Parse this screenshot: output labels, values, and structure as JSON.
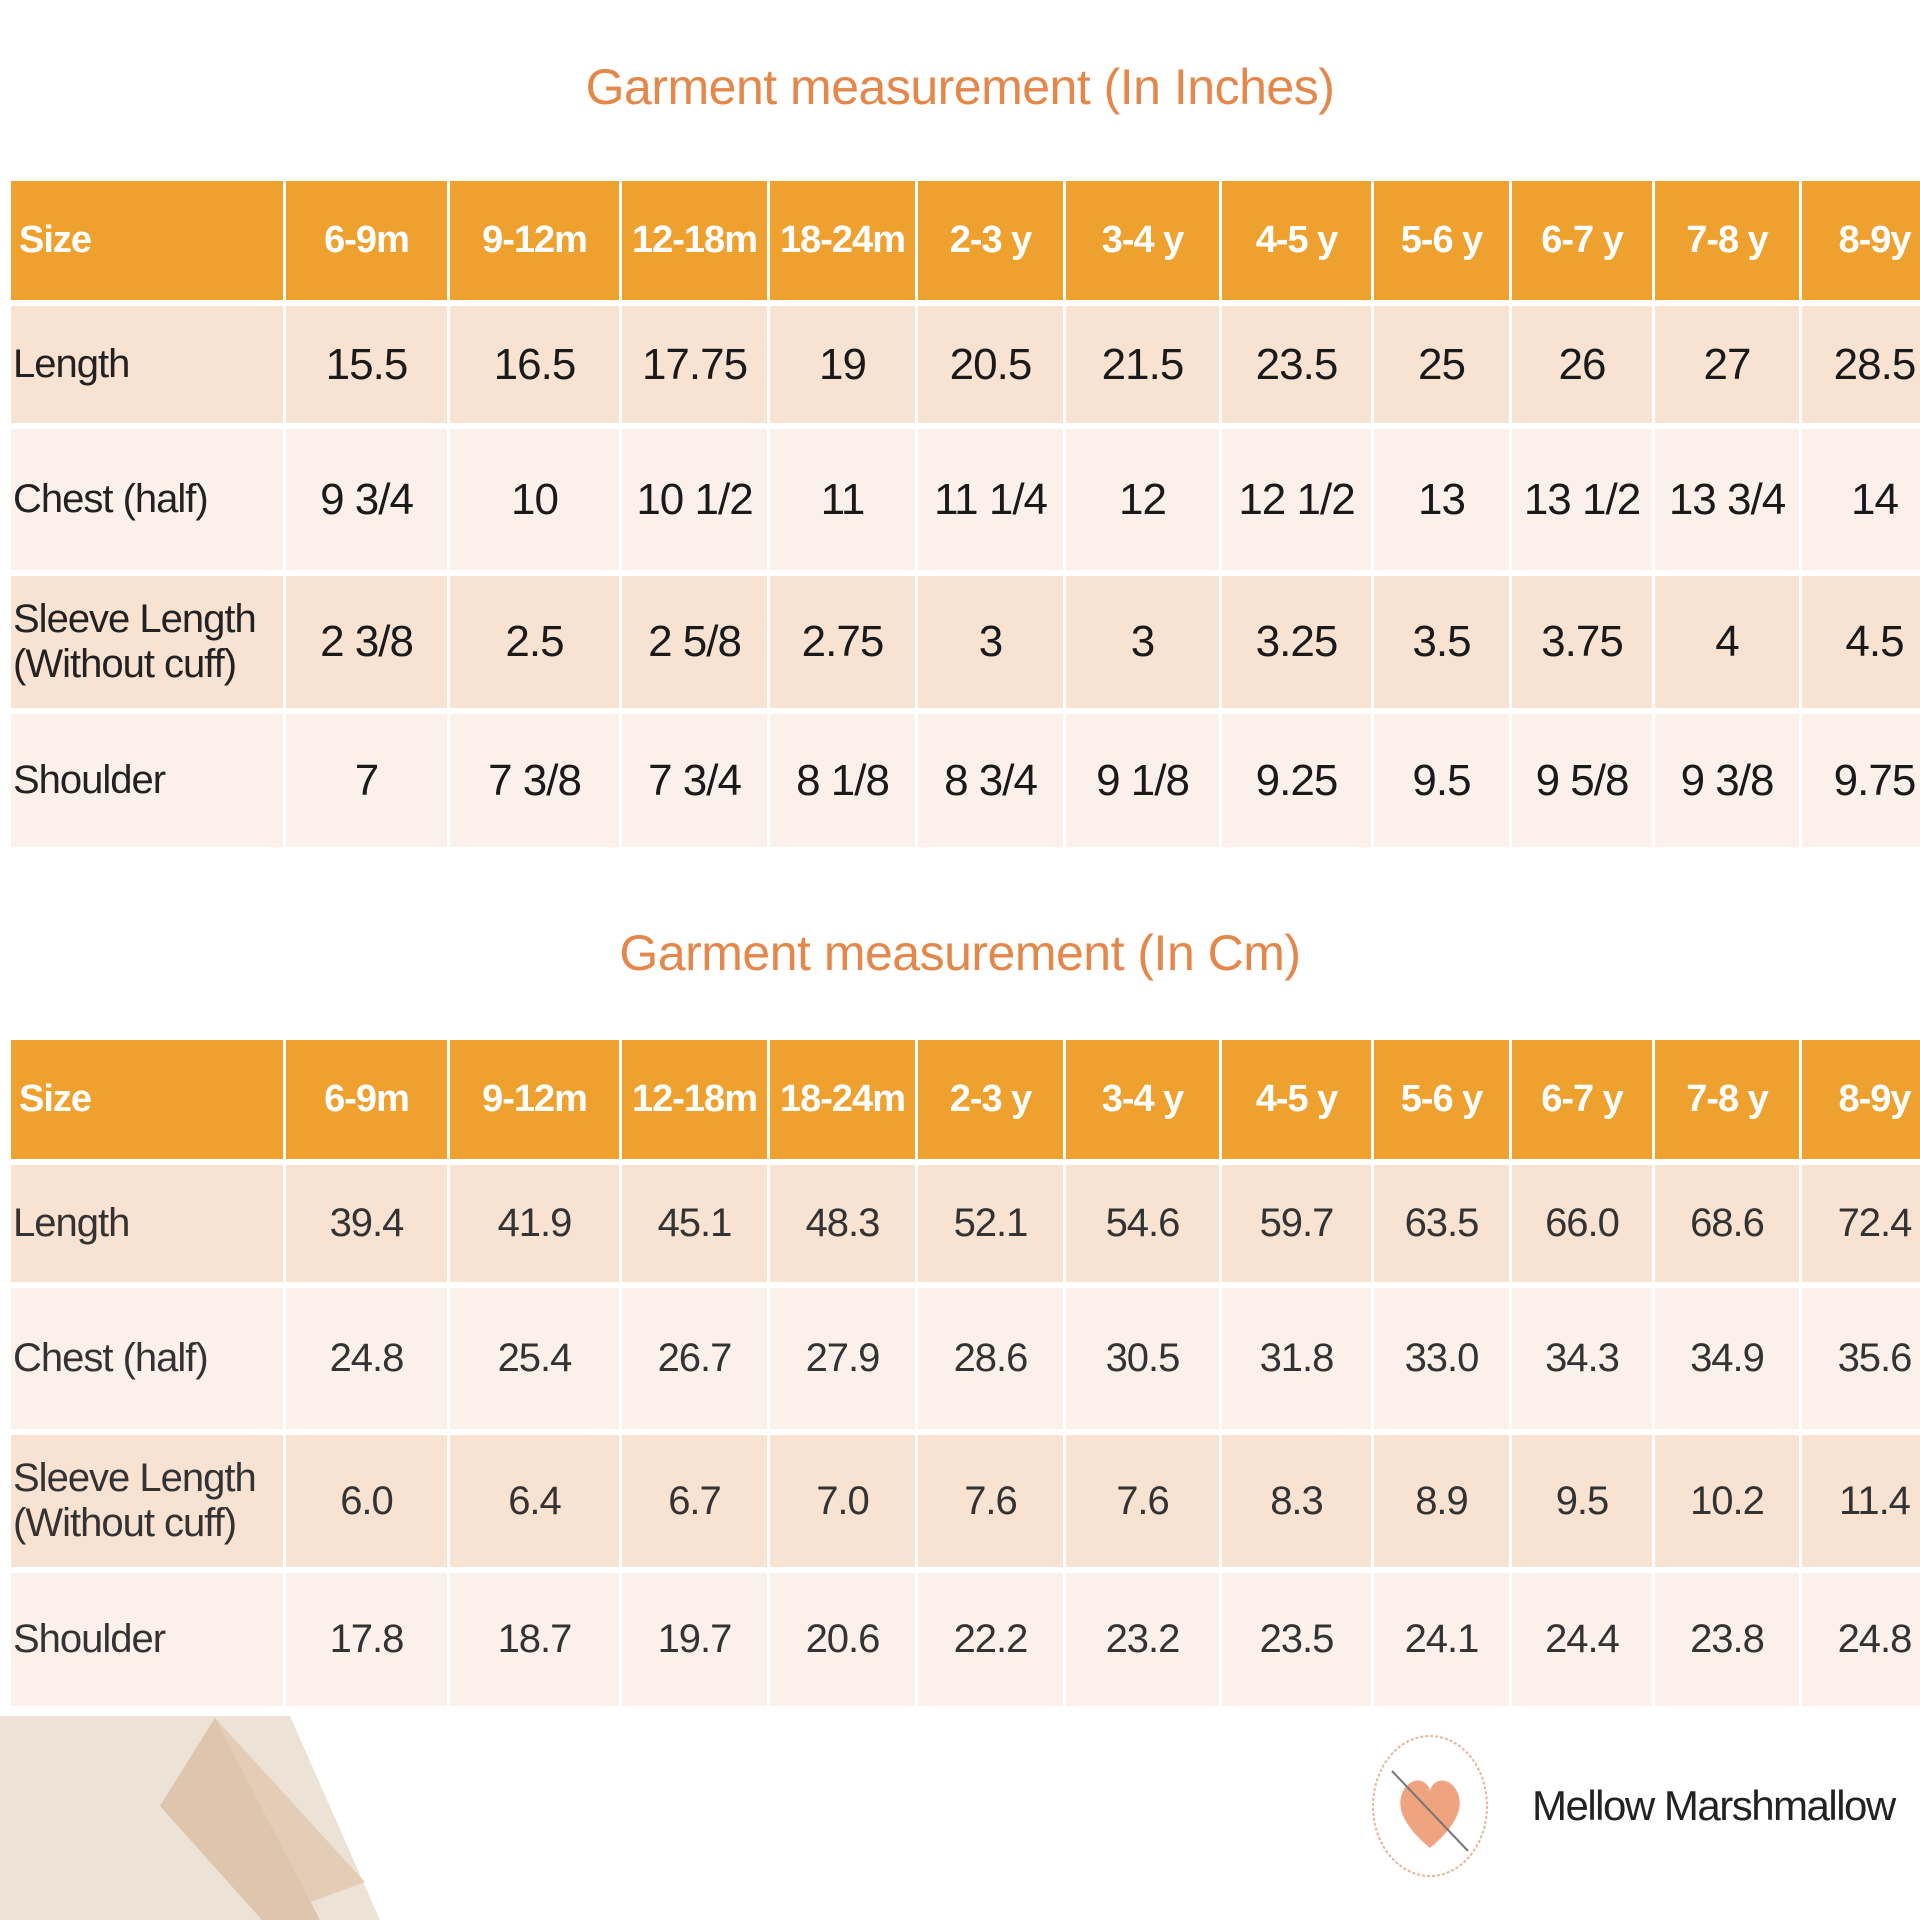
{
  "tables": [
    {
      "title": "Garment measurement (In Inches)",
      "header": [
        "Size",
        "6-9m",
        "9-12m",
        "12-18m",
        "18-24m",
        "2-3 y",
        "3-4 y",
        "4-5 y",
        "5-6 y",
        "6-7 y",
        "7-8 y",
        "8-9y"
      ],
      "rows": [
        [
          "Length",
          "15.5",
          "16.5",
          "17.75",
          "19",
          "20.5",
          "21.5",
          "23.5",
          "25",
          "26",
          "27",
          "28.5"
        ],
        [
          "Chest (half)",
          "9 3/4",
          "10",
          "10 1/2",
          "11",
          "11 1/4",
          "12",
          "12 1/2",
          "13",
          "13 1/2",
          "13 3/4",
          "14"
        ],
        [
          "Sleeve Length (Without cuff)",
          "2 3/8",
          "2.5",
          "2 5/8",
          "2.75",
          "3",
          "3",
          "3.25",
          "3.5",
          "3.75",
          "4",
          "4.5"
        ],
        [
          "Shoulder",
          "7",
          "7 3/8",
          "7 3/4",
          "8 1/8",
          "8 3/4",
          "9 1/8",
          "9.25",
          "9.5",
          "9 5/8",
          "9 3/8",
          "9.75"
        ]
      ]
    },
    {
      "title": "Garment measurement (In Cm)",
      "header": [
        "Size",
        "6-9m",
        "9-12m",
        "12-18m",
        "18-24m",
        "2-3 y",
        "3-4 y",
        "4-5 y",
        "5-6 y",
        "6-7 y",
        "7-8 y",
        "8-9y"
      ],
      "rows": [
        [
          "Length",
          "39.4",
          "41.9",
          "45.1",
          "48.3",
          "52.1",
          "54.6",
          "59.7",
          "63.5",
          "66.0",
          "68.6",
          "72.4"
        ],
        [
          "Chest (half)",
          "24.8",
          "25.4",
          "26.7",
          "27.9",
          "28.6",
          "30.5",
          "31.8",
          "33.0",
          "34.3",
          "34.9",
          "35.6"
        ],
        [
          "Sleeve Length (Without cuff)",
          "6.0",
          "6.4",
          "6.7",
          "7.0",
          "7.6",
          "7.6",
          "8.3",
          "8.9",
          "9.5",
          "10.2",
          "11.4"
        ],
        [
          "Shoulder",
          "17.8",
          "18.7",
          "19.7",
          "20.6",
          "22.2",
          "23.2",
          "23.5",
          "24.1",
          "24.4",
          "23.8",
          "24.8"
        ]
      ]
    }
  ],
  "brand": {
    "name": "Mellow Marshmallow",
    "logo_icon": "yarn-heart-logo"
  },
  "colors": {
    "header": "#EFA12F",
    "title": "#E4874A",
    "row_odd": "#F8E3D2",
    "row_even": "#FCF1EA"
  }
}
